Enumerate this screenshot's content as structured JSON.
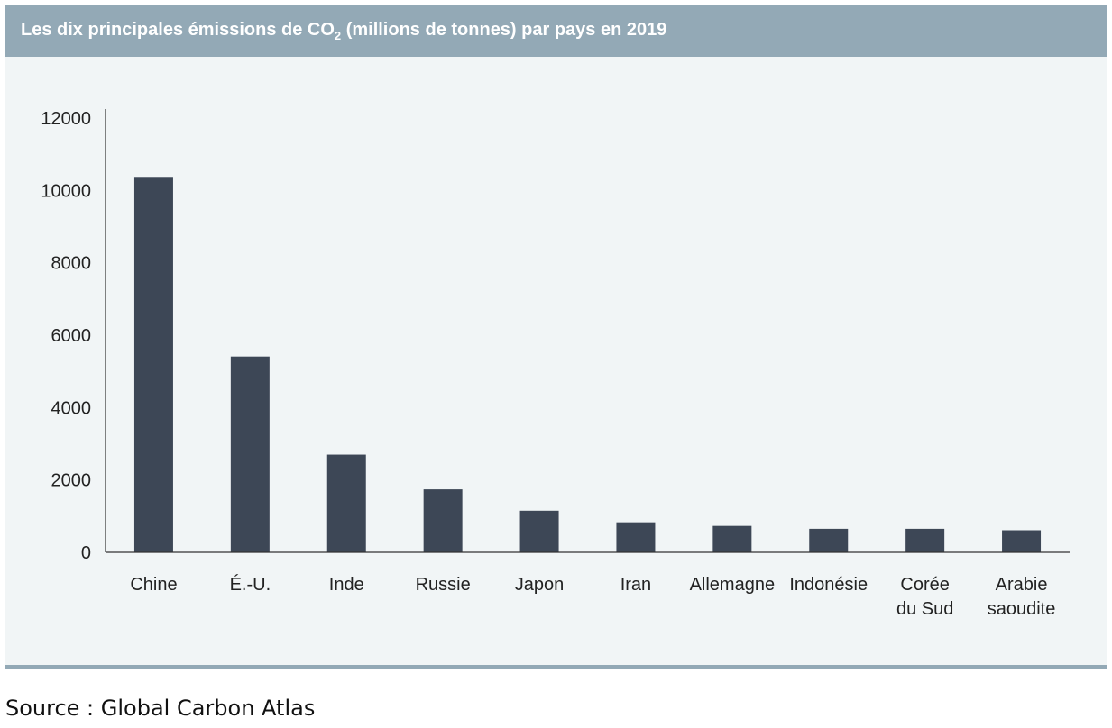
{
  "header": {
    "title_before": "Les dix principales émissions de CO",
    "title_sub": "2",
    "title_after": " (millions de tonnes) par pays en 2019"
  },
  "colors": {
    "header_bg": "#93a9b6",
    "panel_bg": "#f1f5f6",
    "bar": "#3d4756"
  },
  "chart_data": {
    "type": "bar",
    "title": "Les dix principales émissions de CO2 (millions de tonnes) par pays en 2019",
    "categories": [
      [
        "Chine"
      ],
      [
        "É.-U."
      ],
      [
        "Inde"
      ],
      [
        "Russie"
      ],
      [
        "Japon"
      ],
      [
        "Iran"
      ],
      [
        "Allemagne"
      ],
      [
        "Indonésie"
      ],
      [
        "Corée",
        "du Sud"
      ],
      [
        "Arabie",
        "saoudite"
      ]
    ],
    "values": [
      10350,
      5410,
      2700,
      1740,
      1150,
      830,
      730,
      650,
      650,
      610
    ],
    "ylim": [
      0,
      12000
    ],
    "yticks": [
      0,
      2000,
      4000,
      6000,
      8000,
      10000,
      12000
    ],
    "xlabel": "",
    "ylabel": "",
    "grid": false,
    "legend": "none"
  },
  "source": "Source : Global Carbon Atlas"
}
